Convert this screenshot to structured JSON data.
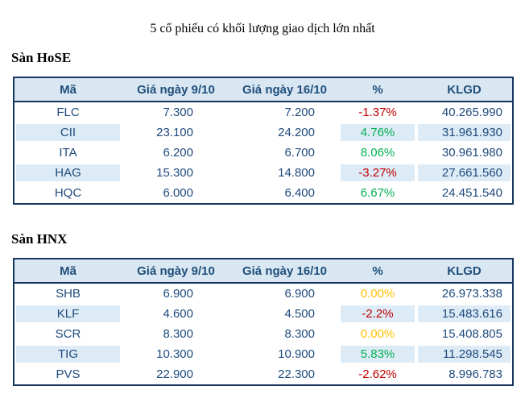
{
  "title": "5 cổ phiếu có khối lượng giao dịch lớn nhất",
  "colors": {
    "up": "#00b050",
    "down": "#c00000",
    "flat": "#ffc000",
    "text": "#1f4a7d",
    "header_text": "#1f4e79",
    "header_bg": "#d9e7f3",
    "zebra_bg": "#dcebf5",
    "border": "#17365d"
  },
  "sections": [
    {
      "heading": "Sàn HoSE",
      "columns": [
        "Mã",
        "Giá ngày 9/10",
        "Giá ngày 16/10",
        "%",
        "KLGD"
      ],
      "rows": [
        {
          "code": "FLC",
          "price_0910": "7.300",
          "price_1610": "7.200",
          "change": "-1.37%",
          "change_color": "#c00000",
          "volume": "40.265.990"
        },
        {
          "code": "CII",
          "price_0910": "23.100",
          "price_1610": "24.200",
          "change": "4.76%",
          "change_color": "#00b050",
          "volume": "31.961.930"
        },
        {
          "code": "ITA",
          "price_0910": "6.200",
          "price_1610": "6.700",
          "change": "8.06%",
          "change_color": "#00b050",
          "volume": "30.961.980"
        },
        {
          "code": "HAG",
          "price_0910": "15.300",
          "price_1610": "14.800",
          "change": "-3.27%",
          "change_color": "#c00000",
          "volume": "27.661.560"
        },
        {
          "code": "HQC",
          "price_0910": "6.000",
          "price_1610": "6.400",
          "change": "6.67%",
          "change_color": "#00b050",
          "volume": "24.451.540"
        }
      ]
    },
    {
      "heading": "Sàn HNX",
      "columns": [
        "Mã",
        "Giá ngày 9/10",
        "Giá ngày 16/10",
        "%",
        "KLGD"
      ],
      "rows": [
        {
          "code": "SHB",
          "price_0910": "6.900",
          "price_1610": "6.900",
          "change": "0.00%",
          "change_color": "#ffc000",
          "volume": "26.973.338"
        },
        {
          "code": "KLF",
          "price_0910": "4.600",
          "price_1610": "4.500",
          "change": "-2.2%",
          "change_color": "#c00000",
          "volume": "15.483.616"
        },
        {
          "code": "SCR",
          "price_0910": "8.300",
          "price_1610": "8.300",
          "change": "0.00%",
          "change_color": "#ffc000",
          "volume": "15.408.805"
        },
        {
          "code": "TIG",
          "price_0910": "10.300",
          "price_1610": "10.900",
          "change": "5.83%",
          "change_color": "#00b050",
          "volume": "11.298.545"
        },
        {
          "code": "PVS",
          "price_0910": "22.900",
          "price_1610": "22.300",
          "change": "-2.62%",
          "change_color": "#c00000",
          "volume": "8.996.783"
        }
      ]
    }
  ],
  "chart_data": [
    {
      "type": "table",
      "title": "Sàn HoSE",
      "columns": [
        "Mã",
        "Giá ngày 9/10",
        "Giá ngày 16/10",
        "%",
        "KLGD"
      ],
      "rows": [
        [
          "FLC",
          "7.300",
          "7.200",
          "-1.37%",
          "40.265.990"
        ],
        [
          "CII",
          "23.100",
          "24.200",
          "4.76%",
          "31.961.930"
        ],
        [
          "ITA",
          "6.200",
          "6.700",
          "8.06%",
          "30.961.980"
        ],
        [
          "HAG",
          "15.300",
          "14.800",
          "-3.27%",
          "27.661.560"
        ],
        [
          "HQC",
          "6.000",
          "6.400",
          "6.67%",
          "24.451.540"
        ]
      ]
    },
    {
      "type": "table",
      "title": "Sàn HNX",
      "columns": [
        "Mã",
        "Giá ngày 9/10",
        "Giá ngày 16/10",
        "%",
        "KLGD"
      ],
      "rows": [
        [
          "SHB",
          "6.900",
          "6.900",
          "0.00%",
          "26.973.338"
        ],
        [
          "KLF",
          "4.600",
          "4.500",
          "-2.2%",
          "15.483.616"
        ],
        [
          "SCR",
          "8.300",
          "8.300",
          "0.00%",
          "15.408.805"
        ],
        [
          "TIG",
          "10.300",
          "10.900",
          "5.83%",
          "11.298.545"
        ],
        [
          "PVS",
          "22.900",
          "22.300",
          "-2.62%",
          "8.996.783"
        ]
      ]
    }
  ]
}
